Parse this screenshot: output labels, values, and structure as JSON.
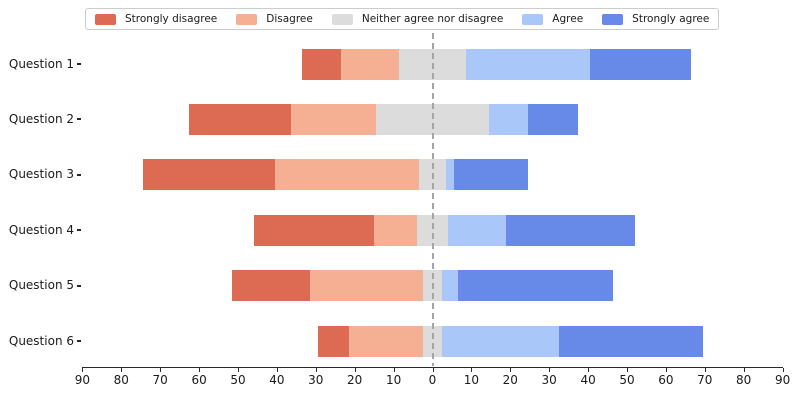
{
  "chart_data": {
    "type": "bar",
    "variant": "diverging-stacked-horizontal-likert",
    "title": "",
    "xlabel": "",
    "ylabel": "",
    "categories": [
      "Question 1",
      "Question 2",
      "Question 3",
      "Question 4",
      "Question 5",
      "Question 6"
    ],
    "series": [
      {
        "name": "Strongly disagree",
        "color": "#dd6a52",
        "values": [
          10,
          26,
          34,
          31,
          20,
          8
        ]
      },
      {
        "name": "Disagree",
        "color": "#f5b094",
        "values": [
          15,
          22,
          37,
          11,
          29,
          19
        ]
      },
      {
        "name": "Neither agree nor disagree",
        "color": "#dcdcdc",
        "values": [
          17,
          29,
          7,
          8,
          5,
          5
        ]
      },
      {
        "name": "Agree",
        "color": "#a9c7f9",
        "values": [
          32,
          10,
          2,
          15,
          4,
          30
        ]
      },
      {
        "name": "Strongly agree",
        "color": "#6789e8",
        "values": [
          26,
          13,
          19,
          33,
          40,
          37
        ]
      }
    ],
    "stack_rule": "neutral category centered on zero; disagree side extends left, agree side extends right",
    "xlim": [
      -90,
      90
    ],
    "x_tick_step": 10,
    "x_tick_labels": [
      "90",
      "80",
      "70",
      "60",
      "50",
      "40",
      "30",
      "20",
      "10",
      "0",
      "10",
      "20",
      "30",
      "40",
      "50",
      "60",
      "70",
      "80",
      "90"
    ],
    "center_line": {
      "x": 0,
      "style": "dashed",
      "color": "#a5a5a5"
    },
    "grid": false,
    "legend_position": "top",
    "axis_color": "#2b2b2b",
    "text_color": "#1a1a1a",
    "background_color": "#ffffff"
  }
}
